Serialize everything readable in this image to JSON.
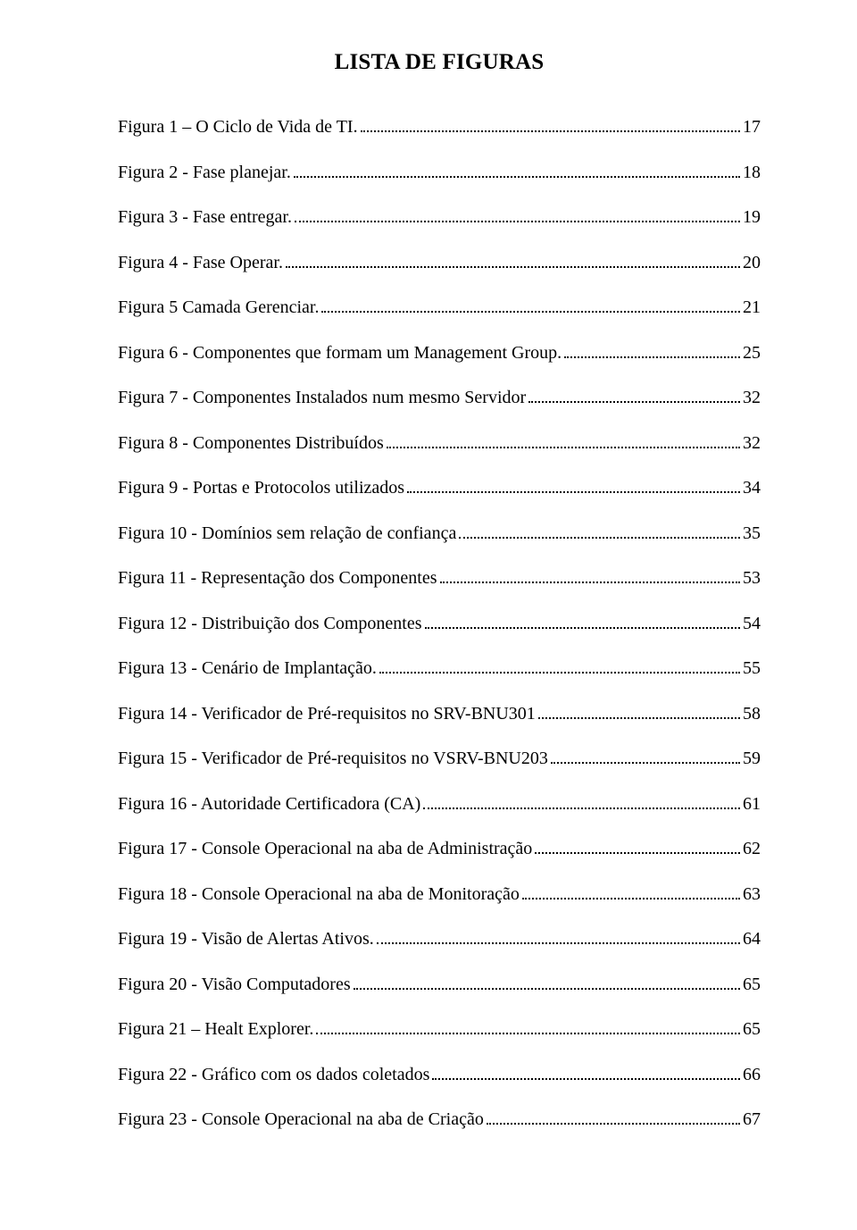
{
  "title": "LISTA DE FIGURAS",
  "entries": [
    {
      "label": "Figura 1 – O Ciclo de Vida de TI.",
      "page": "17"
    },
    {
      "label": "Figura 2 - Fase planejar.",
      "page": "18"
    },
    {
      "label": "Figura 3 - Fase entregar.",
      "page": "19"
    },
    {
      "label": "Figura 4 - Fase Operar.",
      "page": "20"
    },
    {
      "label": "Figura 5 Camada Gerenciar.",
      "page": "21"
    },
    {
      "label": "Figura 6 - Componentes que formam um Management Group.",
      "page": "25"
    },
    {
      "label": "Figura 7 - Componentes Instalados num mesmo Servidor",
      "page": "32"
    },
    {
      "label": "Figura 8 - Componentes Distribuídos",
      "page": "32"
    },
    {
      "label": "Figura 9 - Portas e Protocolos utilizados",
      "page": "34"
    },
    {
      "label": "Figura 10 - Domínios sem relação de confiança",
      "page": "35"
    },
    {
      "label": "Figura 11 - Representação dos Componentes",
      "page": "53"
    },
    {
      "label": "Figura 12 - Distribuição dos Componentes",
      "page": "54"
    },
    {
      "label": "Figura 13 - Cenário de Implantação.",
      "page": "55"
    },
    {
      "label": "Figura 14 - Verificador de Pré-requisitos no SRV-BNU301",
      "page": "58"
    },
    {
      "label": "Figura 15 - Verificador de Pré-requisitos no VSRV-BNU203",
      "page": "59"
    },
    {
      "label": "Figura 16 - Autoridade Certificadora (CA)",
      "page": "61"
    },
    {
      "label": "Figura 17 - Console Operacional na aba de Administração",
      "page": "62"
    },
    {
      "label": "Figura 18 - Console Operacional na aba de Monitoração",
      "page": "63"
    },
    {
      "label": "Figura 19 - Visão de Alertas Ativos.",
      "page": "64"
    },
    {
      "label": "Figura 20 - Visão Computadores",
      "page": "65"
    },
    {
      "label": "Figura 21 – Healt Explorer.",
      "page": "65"
    },
    {
      "label": "Figura 22 - Gráfico com os dados coletados",
      "page": "66"
    },
    {
      "label": "Figura 23 - Console Operacional na aba de Criação",
      "page": "67"
    }
  ],
  "font": {
    "family": "Times New Roman",
    "title_size_pt": 25,
    "entry_size_pt": 20
  },
  "colors": {
    "text": "#000000",
    "background": "#ffffff",
    "leader": "#000000"
  }
}
